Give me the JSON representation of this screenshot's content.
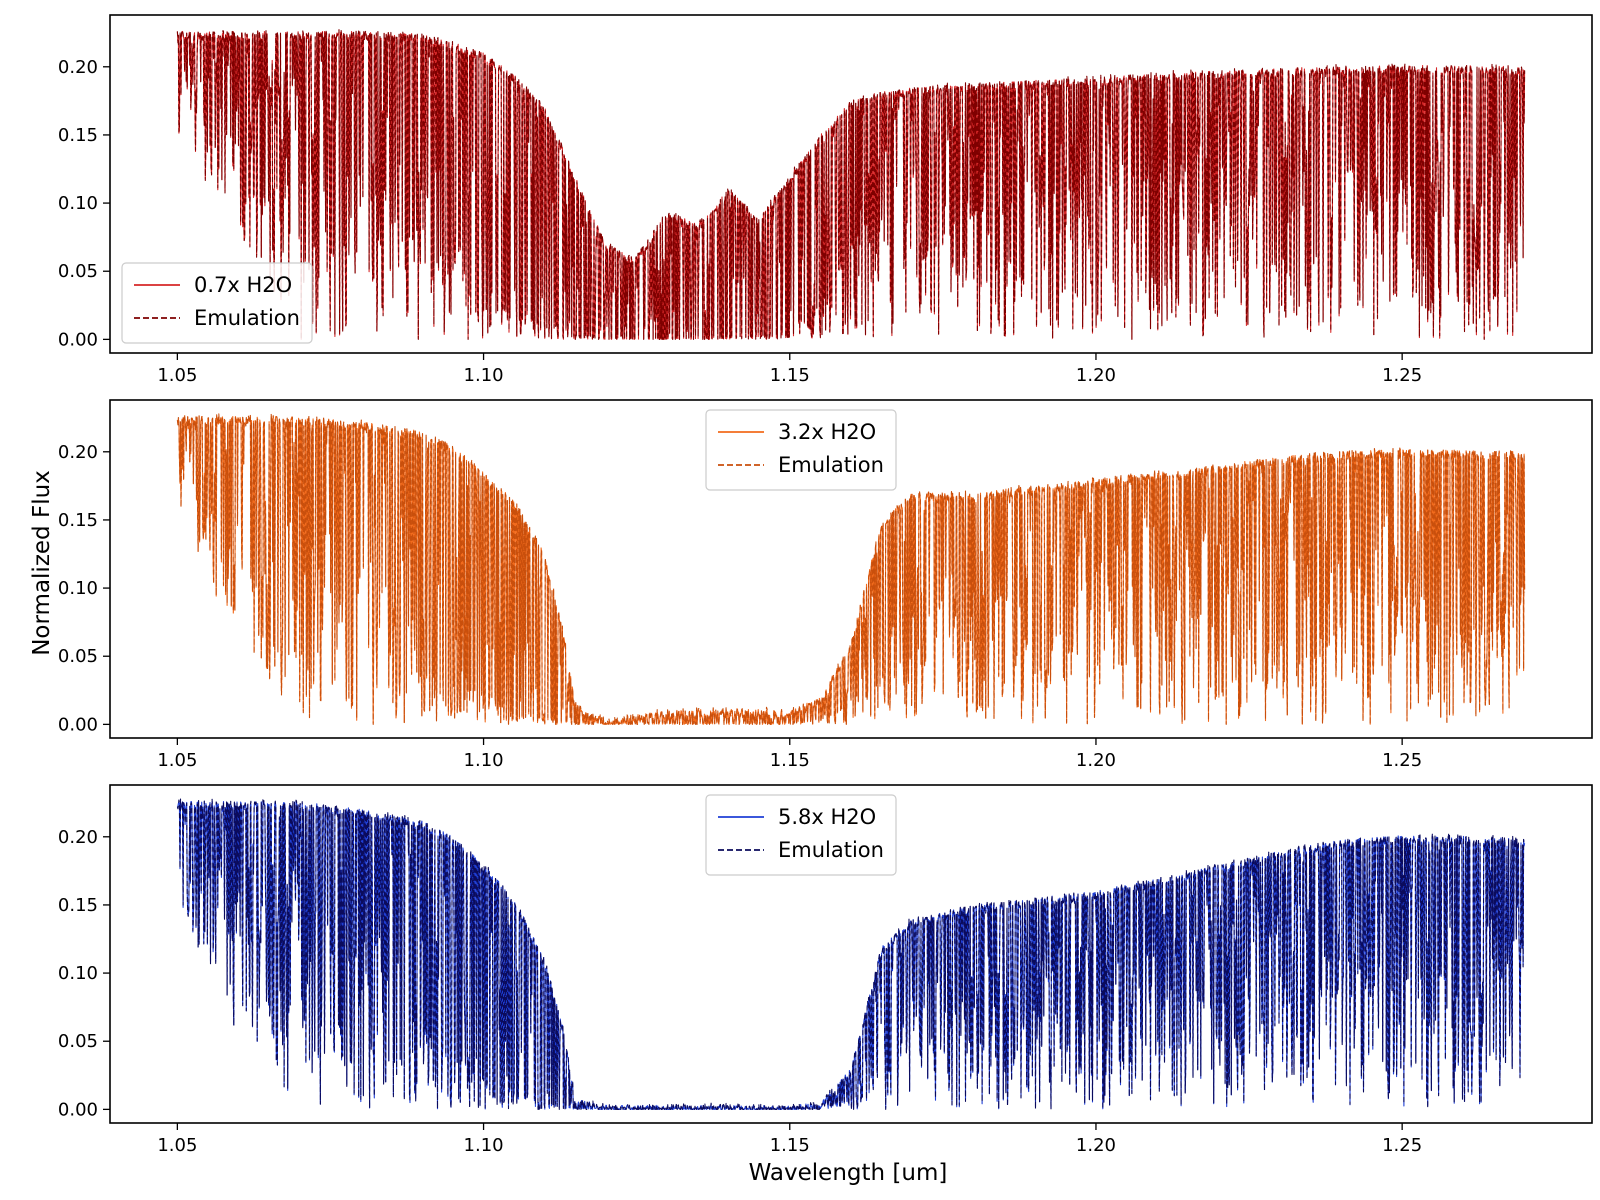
{
  "figure": {
    "ylabel": "Normalized Flux",
    "xlabel": "Wavelength [um]"
  },
  "chart_data": [
    {
      "type": "line",
      "xlim": [
        1.039,
        1.281
      ],
      "ylim": [
        -0.01,
        0.238
      ],
      "x_ticks": [
        1.05,
        1.1,
        1.15,
        1.2,
        1.25
      ],
      "x_tick_labels": [
        "1.05",
        "1.10",
        "1.15",
        "1.20",
        "1.25"
      ],
      "y_ticks": [
        0.0,
        0.05,
        0.1,
        0.15,
        0.2
      ],
      "y_tick_labels": [
        "0.00",
        "0.05",
        "0.10",
        "0.15",
        "0.20"
      ],
      "grid": false,
      "legend_position": "lower-left",
      "series": [
        {
          "name": "0.7x H2O",
          "style": "solid",
          "color": "#d62728"
        },
        {
          "name": "Emulation",
          "style": "dashed",
          "color": "#7f0000"
        }
      ],
      "spectrum_envelope": {
        "x": [
          1.05,
          1.06,
          1.07,
          1.08,
          1.09,
          1.095,
          1.1,
          1.105,
          1.11,
          1.115,
          1.12,
          1.125,
          1.13,
          1.135,
          1.14,
          1.145,
          1.15,
          1.155,
          1.16,
          1.165,
          1.17,
          1.18,
          1.19,
          1.2,
          1.21,
          1.22,
          1.23,
          1.24,
          1.25,
          1.26,
          1.27
        ],
        "upper": [
          0.226,
          0.226,
          0.226,
          0.226,
          0.224,
          0.218,
          0.21,
          0.195,
          0.17,
          0.12,
          0.07,
          0.06,
          0.095,
          0.085,
          0.11,
          0.09,
          0.12,
          0.15,
          0.175,
          0.182,
          0.185,
          0.188,
          0.19,
          0.192,
          0.195,
          0.197,
          0.199,
          0.2,
          0.201,
          0.201,
          0.2
        ],
        "lower": [
          0.15,
          0.08,
          0.0,
          0.0,
          0.0,
          0.0,
          0.0,
          0.0,
          0.0,
          0.0,
          0.0,
          0.0,
          0.0,
          0.0,
          0.0,
          0.0,
          0.0,
          0.0,
          0.0,
          0.0,
          0.0,
          0.0,
          0.0,
          0.0,
          0.0,
          0.0,
          0.0,
          0.0,
          0.0,
          0.0,
          0.0
        ],
        "base": [
          0.226,
          0.22,
          0.2,
          0.15,
          0.12,
          0.08,
          0.05,
          0.03,
          0.015,
          0.005,
          0.002,
          0.001,
          0.001,
          0.001,
          0.002,
          0.003,
          0.005,
          0.03,
          0.09,
          0.14,
          0.15,
          0.16,
          0.165,
          0.17,
          0.175,
          0.18,
          0.185,
          0.19,
          0.18,
          0.1,
          0.195
        ]
      }
    },
    {
      "type": "line",
      "xlim": [
        1.039,
        1.281
      ],
      "ylim": [
        -0.01,
        0.238
      ],
      "x_ticks": [
        1.05,
        1.1,
        1.15,
        1.2,
        1.25
      ],
      "x_tick_labels": [
        "1.05",
        "1.10",
        "1.15",
        "1.20",
        "1.25"
      ],
      "y_ticks": [
        0.0,
        0.05,
        0.1,
        0.15,
        0.2
      ],
      "y_tick_labels": [
        "0.00",
        "0.05",
        "0.10",
        "0.15",
        "0.20"
      ],
      "grid": false,
      "legend_position": "upper-center",
      "series": [
        {
          "name": "3.2x H2O",
          "style": "solid",
          "color": "#f26b1d"
        },
        {
          "name": "Emulation",
          "style": "dashed",
          "color": "#c94f0c"
        }
      ],
      "spectrum_envelope": {
        "x": [
          1.05,
          1.06,
          1.07,
          1.08,
          1.09,
          1.095,
          1.1,
          1.105,
          1.11,
          1.113,
          1.115,
          1.12,
          1.13,
          1.14,
          1.15,
          1.155,
          1.16,
          1.165,
          1.17,
          1.18,
          1.19,
          1.2,
          1.21,
          1.22,
          1.23,
          1.24,
          1.25,
          1.26,
          1.27
        ],
        "upper": [
          0.226,
          0.226,
          0.226,
          0.222,
          0.215,
          0.205,
          0.185,
          0.165,
          0.125,
          0.07,
          0.015,
          0.004,
          0.01,
          0.012,
          0.01,
          0.02,
          0.06,
          0.15,
          0.17,
          0.17,
          0.175,
          0.18,
          0.185,
          0.19,
          0.197,
          0.2,
          0.202,
          0.201,
          0.2
        ],
        "lower": [
          0.15,
          0.06,
          0.0,
          0.0,
          0.0,
          0.0,
          0.0,
          0.0,
          0.0,
          0.0,
          0.0,
          0.0,
          0.0,
          0.0,
          0.0,
          0.0,
          0.0,
          0.0,
          0.0,
          0.0,
          0.0,
          0.0,
          0.0,
          0.0,
          0.0,
          0.0,
          0.0,
          0.0,
          0.0
        ],
        "base": [
          0.224,
          0.21,
          0.18,
          0.12,
          0.08,
          0.05,
          0.03,
          0.015,
          0.006,
          0.003,
          0.002,
          0.001,
          0.001,
          0.001,
          0.002,
          0.005,
          0.02,
          0.06,
          0.09,
          0.11,
          0.13,
          0.14,
          0.15,
          0.16,
          0.17,
          0.18,
          0.19,
          0.08,
          0.195
        ]
      }
    },
    {
      "type": "line",
      "xlim": [
        1.039,
        1.281
      ],
      "ylim": [
        -0.01,
        0.238
      ],
      "x_ticks": [
        1.05,
        1.1,
        1.15,
        1.2,
        1.25
      ],
      "x_tick_labels": [
        "1.05",
        "1.10",
        "1.15",
        "1.20",
        "1.25"
      ],
      "y_ticks": [
        0.0,
        0.05,
        0.1,
        0.15,
        0.2
      ],
      "y_tick_labels": [
        "0.00",
        "0.05",
        "0.10",
        "0.15",
        "0.20"
      ],
      "grid": false,
      "legend_position": "upper-center",
      "series": [
        {
          "name": "5.8x H2O",
          "style": "solid",
          "color": "#1f3fd6"
        },
        {
          "name": "Emulation",
          "style": "dashed",
          "color": "#0b0b5c"
        }
      ],
      "spectrum_envelope": {
        "x": [
          1.05,
          1.06,
          1.07,
          1.08,
          1.09,
          1.095,
          1.1,
          1.105,
          1.11,
          1.113,
          1.115,
          1.12,
          1.13,
          1.14,
          1.15,
          1.155,
          1.16,
          1.165,
          1.17,
          1.18,
          1.19,
          1.2,
          1.21,
          1.22,
          1.23,
          1.24,
          1.25,
          1.26,
          1.27
        ],
        "upper": [
          0.226,
          0.226,
          0.226,
          0.22,
          0.212,
          0.2,
          0.18,
          0.155,
          0.11,
          0.06,
          0.008,
          0.003,
          0.003,
          0.003,
          0.003,
          0.005,
          0.03,
          0.12,
          0.14,
          0.15,
          0.155,
          0.16,
          0.17,
          0.18,
          0.19,
          0.198,
          0.201,
          0.201,
          0.198
        ],
        "lower": [
          0.15,
          0.05,
          0.0,
          0.0,
          0.0,
          0.0,
          0.0,
          0.0,
          0.0,
          0.0,
          0.0,
          0.0,
          0.0,
          0.0,
          0.0,
          0.0,
          0.0,
          0.0,
          0.0,
          0.0,
          0.0,
          0.0,
          0.0,
          0.0,
          0.0,
          0.0,
          0.0,
          0.0,
          0.0
        ],
        "base": [
          0.224,
          0.205,
          0.17,
          0.11,
          0.07,
          0.045,
          0.025,
          0.012,
          0.005,
          0.002,
          0.001,
          0.001,
          0.001,
          0.001,
          0.001,
          0.003,
          0.01,
          0.04,
          0.07,
          0.09,
          0.11,
          0.12,
          0.135,
          0.15,
          0.165,
          0.18,
          0.185,
          0.07,
          0.19
        ]
      }
    }
  ]
}
